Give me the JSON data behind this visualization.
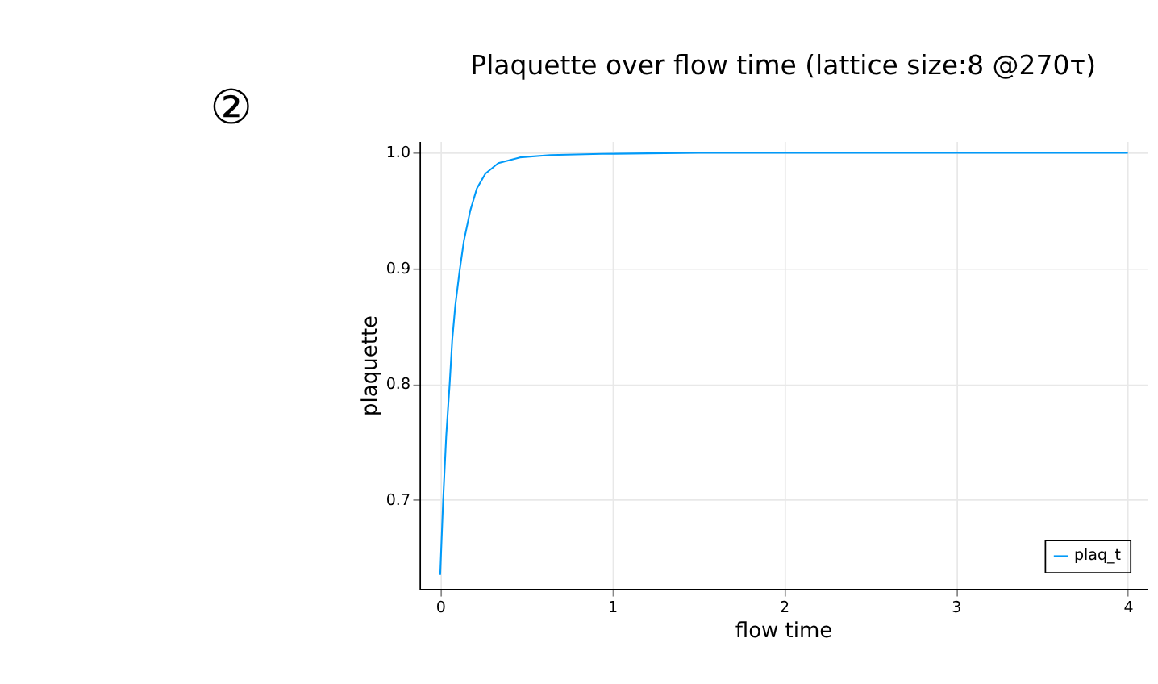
{
  "chart_data": {
    "type": "line",
    "title": "Plaquette over flow time (lattice size:8 @270τ)",
    "xlabel": "flow time",
    "ylabel": "plaquette",
    "annotations": [
      "②"
    ],
    "x": [
      0,
      0.017,
      0.035,
      0.055,
      0.07,
      0.088,
      0.113,
      0.138,
      0.175,
      0.213,
      0.263,
      0.338,
      0.464,
      0.64,
      0.94,
      1.5,
      2,
      3,
      4
    ],
    "series": [
      {
        "name": "plaq_t",
        "color": "#009af9",
        "values": [
          0.635,
          0.699,
          0.755,
          0.8,
          0.838,
          0.868,
          0.898,
          0.924,
          0.95,
          0.969,
          0.982,
          0.991,
          0.996,
          0.998,
          0.999,
          1.0,
          1.0,
          1.0,
          1.0
        ]
      }
    ],
    "xlim": [
      -0.12,
      4.11
    ],
    "xticks": [
      0,
      1,
      2,
      3,
      4
    ],
    "ylim": [
      0.623,
      1.01
    ],
    "yticks": [
      0.7,
      0.8,
      0.9,
      {
        "value": 1.0,
        "label": "1.0"
      }
    ],
    "grid": true,
    "legend": "bottom right",
    "marker": "none",
    "line_style": "solid"
  }
}
